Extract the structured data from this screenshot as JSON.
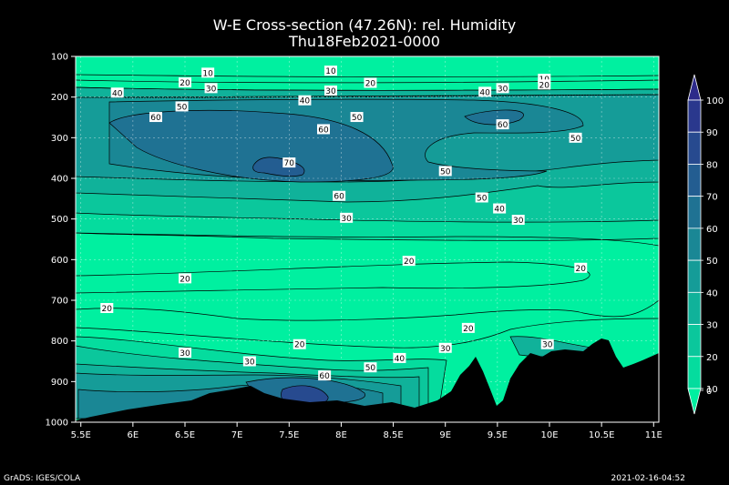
{
  "chart_data": {
    "type": "contour",
    "title": "W-E Cross-section (47.26N): rel. Humidity",
    "subtitle": "Thu18Feb2021-0000",
    "x_ticks": [
      "5.5E",
      "6E",
      "6.5E",
      "7E",
      "7.5E",
      "8E",
      "8.5E",
      "9E",
      "9.5E",
      "10E",
      "10.5E",
      "11E"
    ],
    "x_values": [
      5.5,
      6,
      6.5,
      7,
      7.5,
      8,
      8.5,
      9,
      9.5,
      10,
      10.5,
      11
    ],
    "xlim": [
      5.45,
      11.05
    ],
    "y_ticks": [
      100,
      200,
      300,
      400,
      500,
      600,
      700,
      800,
      900,
      1000
    ],
    "ylim": [
      100,
      1000
    ],
    "grid": true,
    "colorbar": {
      "levels": [
        0,
        10,
        20,
        30,
        40,
        50,
        60,
        70,
        80,
        90,
        100
      ],
      "colors": [
        "#00f0a0",
        "#05dc9e",
        "#0bc79c",
        "#10b29a",
        "#159c98",
        "#1a8795",
        "#1f7293",
        "#235d91",
        "#274a8f",
        "#2a388d",
        "#2d2a8a"
      ]
    },
    "contour_labels": [
      {
        "v": 10,
        "x": 6.72,
        "p": 140
      },
      {
        "v": 10,
        "x": 7.9,
        "p": 135
      },
      {
        "v": 10,
        "x": 9.95,
        "p": 155
      },
      {
        "v": 20,
        "x": 6.5,
        "p": 164
      },
      {
        "v": 20,
        "x": 8.28,
        "p": 165
      },
      {
        "v": 20,
        "x": 9.95,
        "p": 169
      },
      {
        "v": 30,
        "x": 6.75,
        "p": 178
      },
      {
        "v": 30,
        "x": 7.9,
        "p": 184
      },
      {
        "v": 30,
        "x": 9.55,
        "p": 178
      },
      {
        "v": 40,
        "x": 5.85,
        "p": 189
      },
      {
        "v": 40,
        "x": 7.65,
        "p": 208
      },
      {
        "v": 40,
        "x": 9.38,
        "p": 187
      },
      {
        "v": 50,
        "x": 6.47,
        "p": 223
      },
      {
        "v": 50,
        "x": 8.15,
        "p": 249
      },
      {
        "v": 50,
        "x": 10.25,
        "p": 300
      },
      {
        "v": 60,
        "x": 6.22,
        "p": 249
      },
      {
        "v": 60,
        "x": 7.83,
        "p": 279
      },
      {
        "v": 60,
        "x": 9.55,
        "p": 267
      },
      {
        "v": 70,
        "x": 7.5,
        "p": 361
      },
      {
        "v": 50,
        "x": 9.0,
        "p": 382
      },
      {
        "v": 60,
        "x": 7.98,
        "p": 443
      },
      {
        "v": 50,
        "x": 9.35,
        "p": 447
      },
      {
        "v": 40,
        "x": 9.52,
        "p": 474
      },
      {
        "v": 30,
        "x": 8.05,
        "p": 497
      },
      {
        "v": 30,
        "x": 9.7,
        "p": 502
      },
      {
        "v": 20,
        "x": 8.65,
        "p": 603
      },
      {
        "v": 20,
        "x": 10.3,
        "p": 620
      },
      {
        "v": 20,
        "x": 6.5,
        "p": 646
      },
      {
        "v": 20,
        "x": 5.75,
        "p": 719
      },
      {
        "v": 20,
        "x": 9.22,
        "p": 768
      },
      {
        "v": 20,
        "x": 7.6,
        "p": 808
      },
      {
        "v": 30,
        "x": 6.5,
        "p": 829
      },
      {
        "v": 30,
        "x": 9.0,
        "p": 817
      },
      {
        "v": 30,
        "x": 9.98,
        "p": 808
      },
      {
        "v": 30,
        "x": 7.12,
        "p": 850
      },
      {
        "v": 40,
        "x": 8.56,
        "p": 842
      },
      {
        "v": 50,
        "x": 8.28,
        "p": 865
      },
      {
        "v": 60,
        "x": 7.84,
        "p": 885
      }
    ]
  },
  "footer": {
    "left": "GrADS: IGES/COLA",
    "right": "2021-02-16-04:52"
  }
}
